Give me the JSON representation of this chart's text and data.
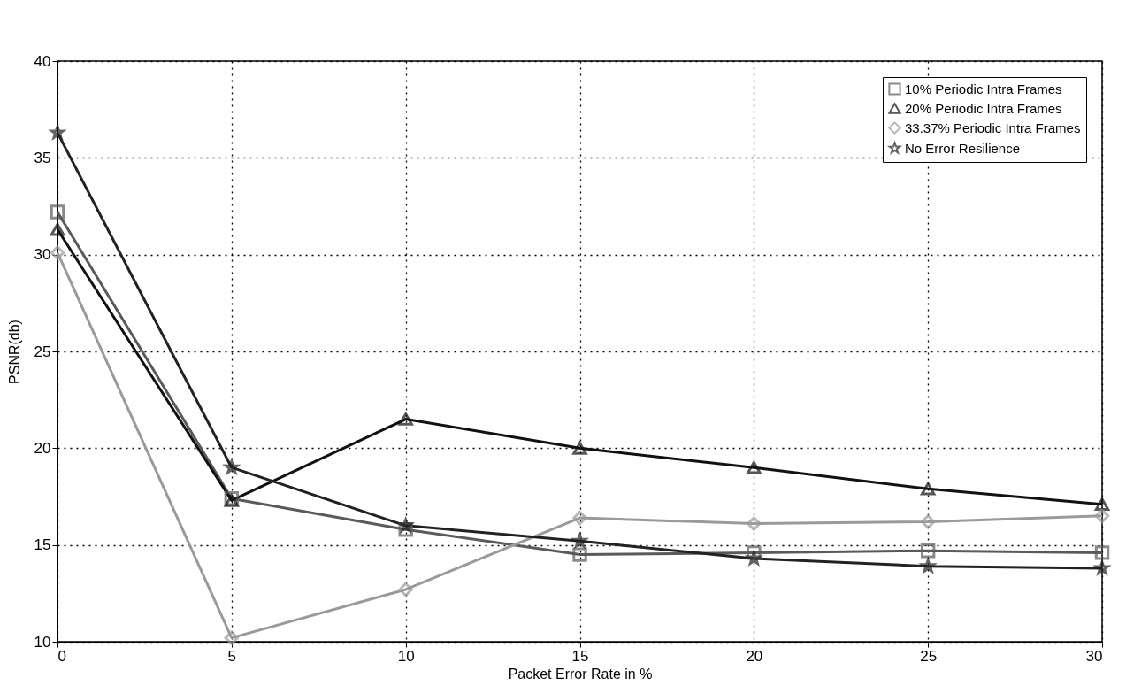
{
  "chart_data": {
    "type": "line",
    "xlabel": "Packet Error Rate in %",
    "ylabel": "PSNR(db)",
    "x": [
      0,
      5,
      10,
      15,
      20,
      25,
      30
    ],
    "series": [
      {
        "name": "10% Periodic Intra Frames",
        "color": "#5a5a5a",
        "marker": "square",
        "values": [
          32.2,
          17.4,
          15.8,
          14.5,
          14.6,
          14.7,
          14.6
        ]
      },
      {
        "name": "20% Periodic Intra Frames",
        "color": "#111111",
        "marker": "triangle",
        "values": [
          31.3,
          17.3,
          21.5,
          20.0,
          19.0,
          17.9,
          17.1
        ]
      },
      {
        "name": "33.37% Periodic Intra Frames",
        "color": "#9a9a9a",
        "marker": "diamond",
        "values": [
          30.1,
          10.2,
          12.7,
          16.4,
          16.1,
          16.2,
          16.5
        ]
      },
      {
        "name": "No Error Resilience",
        "color": "#222222",
        "marker": "star",
        "values": [
          36.3,
          19.0,
          16.0,
          15.2,
          14.3,
          13.9,
          13.8
        ]
      }
    ],
    "xlim": [
      0,
      30
    ],
    "xticks": [
      0,
      5,
      10,
      15,
      20,
      25,
      30
    ],
    "ylim": [
      10,
      40
    ],
    "yticks": [
      10,
      15,
      20,
      25,
      30,
      35,
      40
    ],
    "grid": true,
    "legend": "top right",
    "line_style": "solid"
  }
}
